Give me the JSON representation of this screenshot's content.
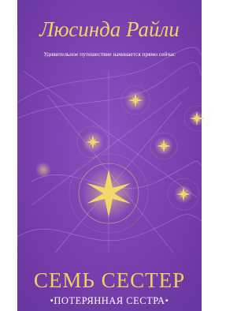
{
  "cover": {
    "author": "Люсинда Райли",
    "tagline": "Удивительное путешествие начинается прямо сейчас",
    "title": "СЕМЬ СЕСТЕР",
    "subtitle": "•ПОТЕРЯННАЯ СЕСТРА•"
  }
}
